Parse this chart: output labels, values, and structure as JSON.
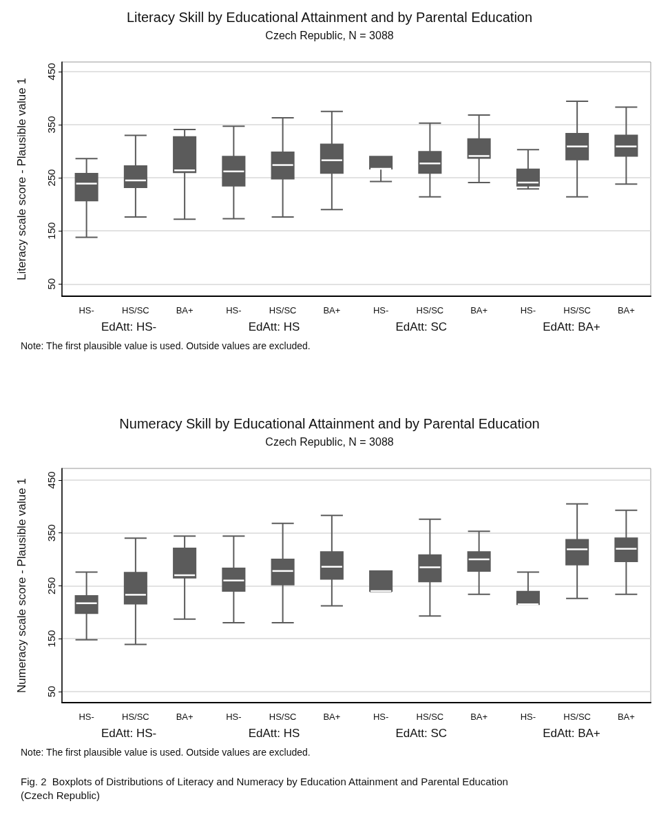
{
  "chart_data": [
    {
      "type": "box",
      "title": "Literacy Skill by Educational Attainment and by Parental Education",
      "subtitle": "Czech Republic, N = 3088",
      "ylabel": "Literacy scale score - Plausible value 1",
      "categories": [
        "HS-",
        "HS/SC",
        "BA+",
        "HS-",
        "HS/SC",
        "BA+",
        "HS-",
        "HS/SC",
        "BA+",
        "HS-",
        "HS/SC",
        "BA+"
      ],
      "series": [
        {
          "color": "#5b5b5b",
          "boxes": [
            {
              "low": 138,
              "q1": 207,
              "median": 239,
              "q3": 258,
              "high": 286
            },
            {
              "low": 176,
              "q1": 232,
              "median": 245,
              "q3": 272,
              "high": 330
            },
            {
              "low": 172,
              "q1": 260,
              "median": 264,
              "q3": 327,
              "high": 341
            },
            {
              "low": 173,
              "q1": 235,
              "median": 262,
              "q3": 290,
              "high": 347
            },
            {
              "low": 176,
              "q1": 248,
              "median": 274,
              "q3": 298,
              "high": 363
            },
            {
              "low": 190,
              "q1": 259,
              "median": 283,
              "q3": 313,
              "high": 375
            },
            {
              "low": 243,
              "q1": 267,
              "median": 267,
              "q3": 290,
              "high": 290
            },
            {
              "low": 214,
              "q1": 259,
              "median": 277,
              "q3": 299,
              "high": 353
            },
            {
              "low": 241,
              "q1": 287,
              "median": 291,
              "q3": 323,
              "high": 368
            },
            {
              "low": 229,
              "q1": 235,
              "median": 241,
              "q3": 266,
              "high": 303
            },
            {
              "low": 214,
              "q1": 284,
              "median": 309,
              "q3": 333,
              "high": 394
            },
            {
              "low": 238,
              "q1": 291,
              "median": 309,
              "q3": 330,
              "high": 383
            }
          ]
        }
      ],
      "ylim": [
        27,
        468
      ],
      "yticks": [
        50,
        150,
        250,
        350,
        450
      ],
      "grid": "y",
      "annotations": [
        "EdAtt: HS-",
        "EdAtt: HS",
        "EdAtt: SC",
        "EdAtt: BA+",
        "Note: The first plausible value is used. Outside values are excluded."
      ]
    },
    {
      "type": "box",
      "title": "Numeracy Skill by Educational Attainment and by Parental Education",
      "subtitle": "Czech Republic, N = 3088",
      "ylabel": "Numeracy scale score - Plausible value 1",
      "categories": [
        "HS-",
        "HS/SC",
        "BA+",
        "HS-",
        "HS/SC",
        "BA+",
        "HS-",
        "HS/SC",
        "BA+",
        "HS-",
        "HS/SC",
        "BA+"
      ],
      "series": [
        {
          "color": "#5b5b5b",
          "boxes": [
            {
              "low": 148,
              "q1": 198,
              "median": 217,
              "q3": 231,
              "high": 276
            },
            {
              "low": 139,
              "q1": 216,
              "median": 233,
              "q3": 275,
              "high": 340
            },
            {
              "low": 187,
              "q1": 265,
              "median": 270,
              "q3": 321,
              "high": 344
            },
            {
              "low": 180,
              "q1": 240,
              "median": 260,
              "q3": 283,
              "high": 344
            },
            {
              "low": 180,
              "q1": 252,
              "median": 278,
              "q3": 300,
              "high": 368
            },
            {
              "low": 212,
              "q1": 263,
              "median": 286,
              "q3": 314,
              "high": 383
            },
            {
              "low": 239,
              "q1": 240,
              "median": 240,
              "q3": 278,
              "high": 278
            },
            {
              "low": 193,
              "q1": 258,
              "median": 285,
              "q3": 308,
              "high": 376
            },
            {
              "low": 234,
              "q1": 278,
              "median": 300,
              "q3": 314,
              "high": 353
            },
            {
              "low": 215,
              "q1": 215,
              "median": 215,
              "q3": 239,
              "high": 276
            },
            {
              "low": 226,
              "q1": 290,
              "median": 319,
              "q3": 337,
              "high": 405
            },
            {
              "low": 234,
              "q1": 296,
              "median": 320,
              "q3": 340,
              "high": 393
            }
          ]
        }
      ],
      "ylim": [
        29,
        472
      ],
      "yticks": [
        50,
        150,
        250,
        350,
        450
      ],
      "grid": "y",
      "annotations": [
        "EdAtt: HS-",
        "EdAtt: HS",
        "EdAtt: SC",
        "EdAtt: BA+",
        "Note: The first plausible value is used. Outside values are excluded.",
        "Fig. 2  Boxplots of Distributions of Literacy and Numeracy by Education Attainment and Parental Education (Czech Republic)"
      ]
    }
  ]
}
